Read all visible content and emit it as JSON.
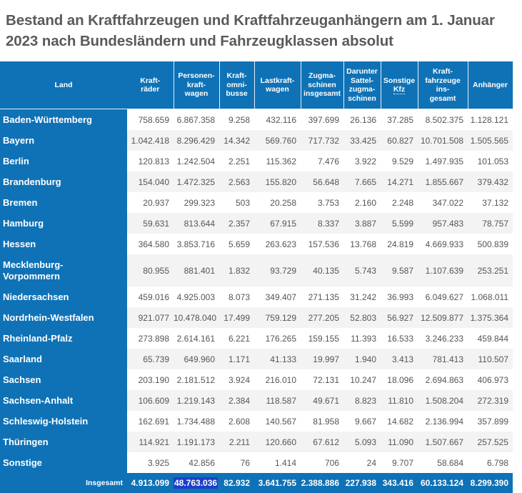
{
  "title": "Bestand an Kraftfahrzeugen und Kraftfahrzeuganhängern am 1. Januar 2023 nach Bundesländern und Fahrzeugklassen absolut",
  "columns": [
    "Land",
    "Kraft-räder",
    "Personen-kraft-wagen",
    "Kraft-omni-busse",
    "Lastkraft-wagen",
    "Zugma-schinen insgesamt",
    "Darunter Sattel-zugma-schinen",
    "Sonstige Kfz",
    "Kraft-fahrzeuge ins-gesamt",
    "Anhänger"
  ],
  "rows": [
    {
      "land": "Baden-Württemberg",
      "values": [
        "758.659",
        "6.867.358",
        "9.258",
        "432.116",
        "397.699",
        "26.136",
        "37.285",
        "8.502.375",
        "1.128.121"
      ]
    },
    {
      "land": "Bayern",
      "values": [
        "1.042.418",
        "8.296.429",
        "14.342",
        "569.760",
        "717.732",
        "33.425",
        "60.827",
        "10.701.508",
        "1.505.565"
      ]
    },
    {
      "land": "Berlin",
      "values": [
        "120.813",
        "1.242.504",
        "2.251",
        "115.362",
        "7.476",
        "3.922",
        "9.529",
        "1.497.935",
        "101.053"
      ]
    },
    {
      "land": "Brandenburg",
      "values": [
        "154.040",
        "1.472.325",
        "2.563",
        "155.820",
        "56.648",
        "7.665",
        "14.271",
        "1.855.667",
        "379.432"
      ]
    },
    {
      "land": "Bremen",
      "values": [
        "20.937",
        "299.323",
        "503",
        "20.258",
        "3.753",
        "2.160",
        "2.248",
        "347.022",
        "37.132"
      ]
    },
    {
      "land": "Hamburg",
      "values": [
        "59.631",
        "813.644",
        "2.357",
        "67.915",
        "8.337",
        "3.887",
        "5.599",
        "957.483",
        "78.757"
      ]
    },
    {
      "land": "Hessen",
      "values": [
        "364.580",
        "3.853.716",
        "5.659",
        "263.623",
        "157.536",
        "13.768",
        "24.819",
        "4.669.933",
        "500.839"
      ]
    },
    {
      "land": "Mecklenburg-Vorpommern",
      "values": [
        "80.955",
        "881.401",
        "1.832",
        "93.729",
        "40.135",
        "5.743",
        "9.587",
        "1.107.639",
        "253.251"
      ]
    },
    {
      "land": "Niedersachsen",
      "values": [
        "459.016",
        "4.925.003",
        "8.073",
        "349.407",
        "271.135",
        "31.242",
        "36.993",
        "6.049.627",
        "1.068.011"
      ]
    },
    {
      "land": "Nordrhein-Westfalen",
      "values": [
        "921.077",
        "10.478.040",
        "17.499",
        "759.129",
        "277.205",
        "52.803",
        "56.927",
        "12.509.877",
        "1.375.364"
      ]
    },
    {
      "land": "Rheinland-Pfalz",
      "values": [
        "273.898",
        "2.614.161",
        "6.221",
        "176.265",
        "159.155",
        "11.393",
        "16.533",
        "3.246.233",
        "459.844"
      ]
    },
    {
      "land": "Saarland",
      "values": [
        "65.739",
        "649.960",
        "1.171",
        "41.133",
        "19.997",
        "1.940",
        "3.413",
        "781.413",
        "110.507"
      ]
    },
    {
      "land": "Sachsen",
      "values": [
        "203.190",
        "2.181.512",
        "3.924",
        "216.010",
        "72.131",
        "10.247",
        "18.096",
        "2.694.863",
        "406.973"
      ]
    },
    {
      "land": "Sachsen-Anhalt",
      "values": [
        "106.609",
        "1.219.143",
        "2.384",
        "118.587",
        "49.671",
        "8.823",
        "11.810",
        "1.508.204",
        "272.319"
      ]
    },
    {
      "land": "Schleswig-Holstein",
      "values": [
        "162.691",
        "1.734.488",
        "2.608",
        "140.567",
        "81.958",
        "9.667",
        "14.682",
        "2.136.994",
        "357.899"
      ]
    },
    {
      "land": "Thüringen",
      "values": [
        "114.921",
        "1.191.173",
        "2.211",
        "120.660",
        "67.612",
        "5.093",
        "11.090",
        "1.507.667",
        "257.525"
      ]
    },
    {
      "land": "Sonstige",
      "values": [
        "3.925",
        "42.856",
        "76",
        "1.414",
        "706",
        "24",
        "9.707",
        "58.684",
        "6.798"
      ]
    }
  ],
  "total": {
    "label": "Insgesamt",
    "values": [
      "4.913.099",
      "48.763.036",
      "82.932",
      "3.641.755",
      "2.388.886",
      "227.938",
      "343.416",
      "60.133.124",
      "8.299.390"
    ]
  },
  "colors": {
    "header_bg": "#0f72b6",
    "alt_row": "#f3f3f3",
    "selection": "#1d3fc9",
    "title": "#5a5a5a"
  }
}
